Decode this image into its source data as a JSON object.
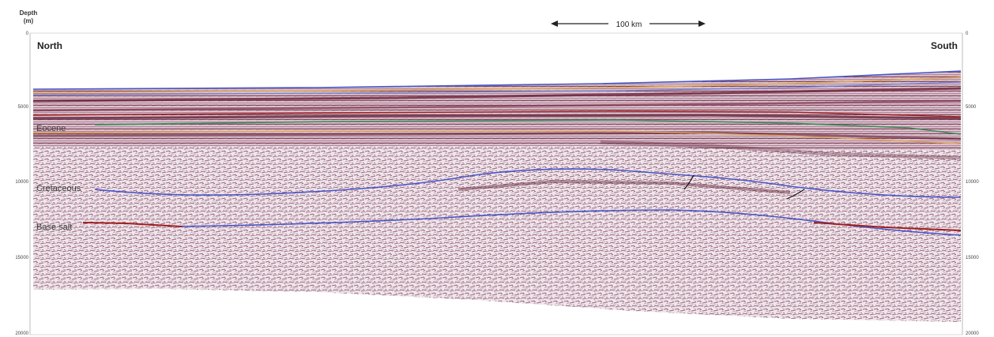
{
  "axis": {
    "title_line1": "Depth",
    "title_line2": "(m)",
    "left_ticks": [
      "0",
      "5000",
      "10000",
      "15000",
      "20000"
    ],
    "right_ticks": [
      "0",
      "5000",
      "10000",
      "15000",
      "20000"
    ]
  },
  "scale_bar": {
    "label": "100 km"
  },
  "directions": {
    "left": "North",
    "right": "South"
  },
  "horizons": {
    "eocene": "Eocene",
    "cretaceous": "Cretaceous",
    "base_salt": "Base salt"
  },
  "colors": {
    "seismic_dark": "#6e2a40",
    "seismic_mid": "#9c6f86",
    "seismic_light": "#eadde5",
    "horizon_blue": "#4a56c8",
    "horizon_green": "#3d8a5a",
    "horizon_orange": "#e0a850",
    "horizon_red": "#a01e1e"
  }
}
